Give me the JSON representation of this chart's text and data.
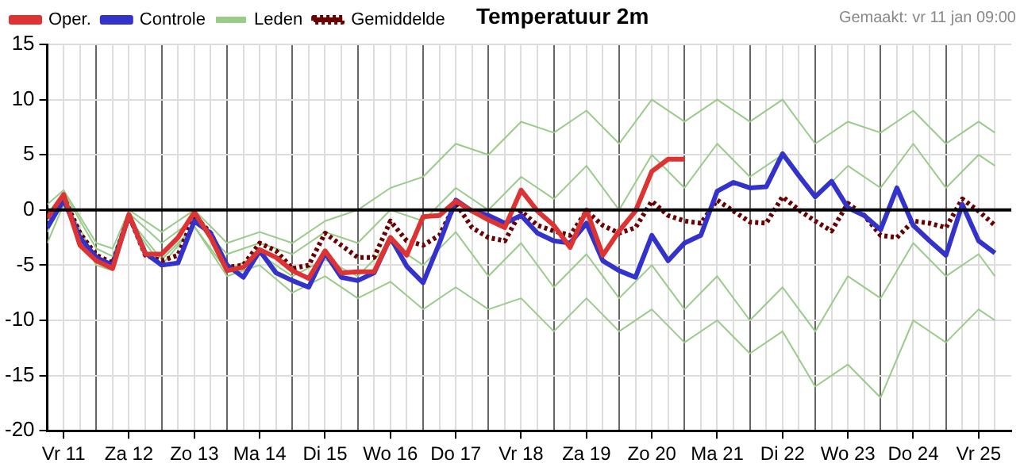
{
  "chart_data": {
    "type": "line",
    "title": "Temperatuur 2m",
    "annotations": [
      "Gemaakt: vr 11 jan 09:00"
    ],
    "x": [
      "--01-11T06:00",
      "--01-11T12:00",
      "--01-11T18:00",
      "--01-12T00:00",
      "--01-12T06:00",
      "--01-12T12:00",
      "--01-12T18:00",
      "--01-13T00:00",
      "--01-13T06:00",
      "--01-13T12:00",
      "--01-13T18:00",
      "--01-14T00:00",
      "--01-14T06:00",
      "--01-14T12:00",
      "--01-14T18:00",
      "--01-15T00:00",
      "--01-15T06:00",
      "--01-15T12:00",
      "--01-15T18:00",
      "--01-16T00:00",
      "--01-16T06:00",
      "--01-16T12:00",
      "--01-16T18:00",
      "--01-17T00:00",
      "--01-17T06:00",
      "--01-17T12:00",
      "--01-17T18:00",
      "--01-18T00:00",
      "--01-18T06:00",
      "--01-18T12:00",
      "--01-18T18:00",
      "--01-19T00:00",
      "--01-19T06:00",
      "--01-19T12:00",
      "--01-19T18:00",
      "--01-20T00:00",
      "--01-20T06:00",
      "--01-20T12:00",
      "--01-20T18:00",
      "--01-21T00:00",
      "--01-21T06:00",
      "--01-21T12:00",
      "--01-21T18:00",
      "--01-22T00:00",
      "--01-22T06:00",
      "--01-22T12:00",
      "--01-22T18:00",
      "--01-23T00:00",
      "--01-23T06:00",
      "--01-23T12:00",
      "--01-23T18:00",
      "--01-24T00:00",
      "--01-24T06:00",
      "--01-24T12:00",
      "--01-24T18:00",
      "--01-25T00:00",
      "--01-25T06:00",
      "--01-25T12:00",
      "--01-25T18:00"
    ],
    "series": [
      {
        "name": "Oper.",
        "color": "#dd3333",
        "x": [
          "--01-11T06:00",
          "--01-11T12:00",
          "--01-11T18:00",
          "--01-12T00:00",
          "--01-12T06:00",
          "--01-12T12:00",
          "--01-12T18:00",
          "--01-13T00:00",
          "--01-13T06:00",
          "--01-13T12:00",
          "--01-13T18:00",
          "--01-14T00:00",
          "--01-14T06:00",
          "--01-14T12:00",
          "--01-14T18:00",
          "--01-15T00:00",
          "--01-15T06:00",
          "--01-15T12:00",
          "--01-15T18:00",
          "--01-16T00:00",
          "--01-16T06:00",
          "--01-16T12:00",
          "--01-16T18:00",
          "--01-17T00:00",
          "--01-17T06:00",
          "--01-17T12:00",
          "--01-17T18:00",
          "--01-18T00:00",
          "--01-18T06:00",
          "--01-18T12:00",
          "--01-18T18:00",
          "--01-19T00:00",
          "--01-19T06:00",
          "--01-19T12:00",
          "--01-19T18:00",
          "--01-20T00:00",
          "--01-20T06:00",
          "--01-20T12:00",
          "--01-20T18:00",
          "--01-21T00:00"
        ],
        "values": [
          -0.7,
          1.4,
          -3.2,
          -4.6,
          -5.3,
          -0.4,
          -4.0,
          -4.0,
          -2.5,
          -0.2,
          -2.5,
          -5.5,
          -5.2,
          -3.6,
          -4.3,
          -5.5,
          -6.2,
          -3.7,
          -5.7,
          -5.6,
          -5.6,
          -2.5,
          -4.1,
          -0.6,
          -0.5,
          0.8,
          -0.1,
          -0.9,
          -1.6,
          1.8,
          -0.1,
          -1.4,
          -3.4,
          0.0,
          -4.1,
          -1.9,
          -0.1,
          3.5,
          4.6,
          4.6
        ]
      },
      {
        "name": "Controle",
        "color": "#3333cc",
        "values": [
          -1.6,
          0.9,
          -2.5,
          -4.3,
          -5.0,
          -0.5,
          -3.9,
          -5.0,
          -4.8,
          -1.0,
          -2.1,
          -5.0,
          -6.1,
          -3.7,
          -5.7,
          -6.4,
          -7.0,
          -3.9,
          -6.1,
          -6.4,
          -5.7,
          -2.5,
          -5.1,
          -6.6,
          -3.0,
          0.9,
          -0.1,
          -0.5,
          -1.2,
          -0.5,
          -2.1,
          -2.8,
          -3.0,
          -1.2,
          -4.6,
          -5.5,
          -6.1,
          -2.3,
          -4.6,
          -3.0,
          -2.3,
          1.7,
          2.5,
          2.0,
          2.1,
          5.1,
          3.1,
          1.2,
          2.6,
          0.2,
          -0.5,
          -1.8,
          2.0,
          -1.4,
          -2.8,
          -4.1,
          0.5,
          -2.8,
          -3.9
        ]
      },
      {
        "name": "Leden",
        "color": "#99cc88",
        "x": [
          "--01-11T06:00",
          "--01-11T12:00",
          "--01-12T00:00",
          "--01-12T06:00",
          "--01-12T12:00",
          "--01-13T00:00",
          "--01-13T12:00",
          "--01-14T00:00",
          "--01-14T12:00",
          "--01-15T00:00",
          "--01-15T12:00",
          "--01-16T00:00",
          "--01-16T12:00",
          "--01-17T00:00",
          "--01-17T12:00",
          "--01-18T00:00",
          "--01-18T12:00",
          "--01-19T00:00",
          "--01-19T12:00",
          "--01-20T00:00",
          "--01-20T12:00",
          "--01-21T00:00",
          "--01-21T12:00",
          "--01-22T00:00",
          "--01-22T12:00",
          "--01-23T00:00",
          "--01-23T12:00",
          "--01-24T00:00",
          "--01-24T12:00",
          "--01-25T00:00",
          "--01-25T12:00",
          "--01-25T18:00"
        ],
        "values": [
          0.5,
          1.8,
          -3,
          -3.5,
          0,
          -2,
          0,
          -3,
          -2,
          -3,
          -1,
          0,
          2,
          3,
          6,
          5,
          8,
          7,
          9,
          6,
          10,
          8,
          10,
          8,
          10,
          6,
          8,
          7,
          9,
          6,
          8,
          7
        ]
      },
      {
        "color": "#99cc88",
        "x": [
          "--01-11T06:00",
          "--01-11T12:00",
          "--01-12T00:00",
          "--01-12T06:00",
          "--01-12T12:00",
          "--01-13T00:00",
          "--01-13T12:00",
          "--01-14T00:00",
          "--01-14T12:00",
          "--01-15T00:00",
          "--01-15T12:00",
          "--01-16T00:00",
          "--01-16T12:00",
          "--01-17T00:00",
          "--01-17T12:00",
          "--01-18T00:00",
          "--01-18T12:00",
          "--01-19T00:00",
          "--01-19T12:00",
          "--01-20T00:00",
          "--01-20T12:00",
          "--01-21T00:00",
          "--01-21T12:00",
          "--01-22T00:00",
          "--01-22T12:00",
          "--01-23T00:00",
          "--01-23T12:00",
          "--01-24T00:00",
          "--01-24T12:00",
          "--01-25T00:00",
          "--01-25T12:00",
          "--01-25T18:00"
        ],
        "values": [
          -1,
          1.6,
          -3.5,
          -4.2,
          -0.3,
          -3,
          -0.8,
          -4,
          -3,
          -4,
          -2,
          -3,
          0,
          -1,
          2,
          0,
          3,
          1,
          4,
          0,
          5,
          2,
          6,
          3,
          5,
          1,
          4,
          2,
          6,
          2,
          5,
          4
        ]
      },
      {
        "color": "#99cc88",
        "x": [
          "--01-11T06:00",
          "--01-11T12:00",
          "--01-12T00:00",
          "--01-12T06:00",
          "--01-12T12:00",
          "--01-13T00:00",
          "--01-13T12:00",
          "--01-14T00:00",
          "--01-14T12:00",
          "--01-15T00:00",
          "--01-15T12:00",
          "--01-16T00:00",
          "--01-16T12:00",
          "--01-17T00:00",
          "--01-17T12:00",
          "--01-18T00:00",
          "--01-18T12:00",
          "--01-19T00:00",
          "--01-19T12:00",
          "--01-20T00:00",
          "--01-20T12:00",
          "--01-21T00:00",
          "--01-21T12:00",
          "--01-22T00:00",
          "--01-22T12:00",
          "--01-23T00:00",
          "--01-23T12:00",
          "--01-24T00:00",
          "--01-24T12:00",
          "--01-25T00:00",
          "--01-25T12:00",
          "--01-25T18:00"
        ],
        "values": [
          -2,
          1,
          -4.5,
          -5,
          -0.8,
          -4.5,
          -1.5,
          -5.5,
          -4,
          -6,
          -4.5,
          -6,
          -3,
          -5,
          -2,
          -6,
          -3,
          -7,
          -4,
          -8,
          -5,
          -9,
          -6,
          -10,
          -7,
          -11,
          -6,
          -8,
          -3,
          -6,
          -4,
          -6
        ]
      },
      {
        "color": "#99cc88",
        "x": [
          "--01-11T06:00",
          "--01-11T12:00",
          "--01-12T00:00",
          "--01-12T06:00",
          "--01-12T12:00",
          "--01-13T00:00",
          "--01-13T12:00",
          "--01-14T00:00",
          "--01-14T12:00",
          "--01-15T00:00",
          "--01-15T12:00",
          "--01-16T00:00",
          "--01-16T12:00",
          "--01-17T00:00",
          "--01-17T12:00",
          "--01-18T00:00",
          "--01-18T12:00",
          "--01-19T00:00",
          "--01-19T12:00",
          "--01-20T00:00",
          "--01-20T12:00",
          "--01-21T00:00",
          "--01-21T12:00",
          "--01-22T00:00",
          "--01-22T12:00",
          "--01-23T00:00",
          "--01-23T12:00",
          "--01-24T00:00",
          "--01-24T12:00",
          "--01-25T00:00",
          "--01-25T12:00",
          "--01-25T18:00"
        ],
        "values": [
          -3,
          0.5,
          -5,
          -5.5,
          -1,
          -5,
          -1.5,
          -6,
          -5,
          -7.5,
          -6,
          -8,
          -6.5,
          -9,
          -7,
          -9,
          -8,
          -11,
          -8,
          -11,
          -9,
          -12,
          -10,
          -13,
          -11,
          -16,
          -14,
          -17,
          -10,
          -12,
          -9,
          -10
        ]
      },
      {
        "name": "Gemiddelde",
        "color": "#6b0000",
        "line_style": "dotted",
        "values": [
          -0.7,
          1.2,
          -2.1,
          -4.1,
          -4.8,
          -0.5,
          -4.1,
          -4.6,
          -4.1,
          -0.5,
          -2.1,
          -5.2,
          -5.0,
          -3.0,
          -3.7,
          -5.3,
          -5.0,
          -2.1,
          -3.2,
          -4.3,
          -4.3,
          -1.0,
          -2.8,
          -3.2,
          -2.3,
          0.6,
          -1.6,
          -2.5,
          -2.8,
          -0.1,
          -1.4,
          -1.9,
          -2.3,
          -0.1,
          -1.4,
          -2.1,
          -1.6,
          0.8,
          -0.5,
          -1.0,
          -1.2,
          0.9,
          -0.1,
          -1.1,
          -1.2,
          1.2,
          0.0,
          -1.0,
          -1.9,
          0.6,
          -0.5,
          -2.3,
          -2.5,
          -1.0,
          -1.2,
          -1.6,
          1.0,
          -0.1,
          -1.4
        ]
      }
    ],
    "xlim": [
      "--01-11T06:00",
      "--01-26T00:00"
    ],
    "xticks": [
      {
        "value": "--01-11T12:00",
        "label": "Vr 11"
      },
      {
        "value": "--01-11T18:00",
        "label": null
      },
      {
        "value": "--01-12T00:00",
        "label": null
      },
      {
        "value": "--01-12T06:00",
        "label": null
      },
      {
        "value": "--01-12T12:00",
        "label": "Za 12"
      },
      {
        "value": "--01-12T18:00",
        "label": null
      },
      {
        "value": "--01-13T00:00",
        "label": null
      },
      {
        "value": "--01-13T06:00",
        "label": null
      },
      {
        "value": "--01-13T12:00",
        "label": "Zo 13"
      },
      {
        "value": "--01-13T18:00",
        "label": null
      },
      {
        "value": "--01-14T00:00",
        "label": null
      },
      {
        "value": "--01-14T06:00",
        "label": null
      },
      {
        "value": "--01-14T12:00",
        "label": "Ma 14"
      },
      {
        "value": "--01-14T18:00",
        "label": null
      },
      {
        "value": "--01-15T00:00",
        "label": null
      },
      {
        "value": "--01-15T06:00",
        "label": null
      },
      {
        "value": "--01-15T12:00",
        "label": "Di 15"
      },
      {
        "value": "--01-15T18:00",
        "label": null
      },
      {
        "value": "--01-16T00:00",
        "label": null
      },
      {
        "value": "--01-16T06:00",
        "label": null
      },
      {
        "value": "--01-16T12:00",
        "label": "Wo 16"
      },
      {
        "value": "--01-16T18:00",
        "label": null
      },
      {
        "value": "--01-17T00:00",
        "label": null
      },
      {
        "value": "--01-17T06:00",
        "label": null
      },
      {
        "value": "--01-17T12:00",
        "label": "Do 17"
      },
      {
        "value": "--01-17T18:00",
        "label": null
      },
      {
        "value": "--01-18T00:00",
        "label": null
      },
      {
        "value": "--01-18T06:00",
        "label": null
      },
      {
        "value": "--01-18T12:00",
        "label": "Vr 18"
      },
      {
        "value": "--01-18T18:00",
        "label": null
      },
      {
        "value": "--01-19T00:00",
        "label": null
      },
      {
        "value": "--01-19T06:00",
        "label": null
      },
      {
        "value": "--01-19T12:00",
        "label": "Za 19"
      },
      {
        "value": "--01-19T18:00",
        "label": null
      },
      {
        "value": "--01-20T00:00",
        "label": null
      },
      {
        "value": "--01-20T06:00",
        "label": null
      },
      {
        "value": "--01-20T12:00",
        "label": "Zo 20"
      },
      {
        "value": "--01-20T18:00",
        "label": null
      },
      {
        "value": "--01-21T00:00",
        "label": null
      },
      {
        "value": "--01-21T06:00",
        "label": null
      },
      {
        "value": "--01-21T12:00",
        "label": "Ma 21"
      },
      {
        "value": "--01-21T18:00",
        "label": null
      },
      {
        "value": "--01-22T00:00",
        "label": null
      },
      {
        "value": "--01-22T06:00",
        "label": null
      },
      {
        "value": "--01-22T12:00",
        "label": "Di 22"
      },
      {
        "value": "--01-22T18:00",
        "label": null
      },
      {
        "value": "--01-23T00:00",
        "label": null
      },
      {
        "value": "--01-23T06:00",
        "label": null
      },
      {
        "value": "--01-23T12:00",
        "label": "Wo 23"
      },
      {
        "value": "--01-23T18:00",
        "label": null
      },
      {
        "value": "--01-24T00:00",
        "label": null
      },
      {
        "value": "--01-24T06:00",
        "label": null
      },
      {
        "value": "--01-24T12:00",
        "label": "Do 24"
      },
      {
        "value": "--01-24T18:00",
        "label": null
      },
      {
        "value": "--01-25T00:00",
        "label": null
      },
      {
        "value": "--01-25T06:00",
        "label": null
      },
      {
        "value": "--01-25T12:00",
        "label": "Vr 25"
      },
      {
        "value": "--01-25T18:00",
        "label": null
      }
    ],
    "ylim": [
      -20,
      15
    ],
    "yticks": [
      -20,
      -15,
      -10,
      -5,
      0,
      5,
      10,
      15
    ],
    "ref_lines": [
      {
        "axis": "y",
        "value": 0,
        "color": "#000000"
      }
    ],
    "grid": true,
    "legend": "top left",
    "marker": "none",
    "line_style": "solid"
  }
}
